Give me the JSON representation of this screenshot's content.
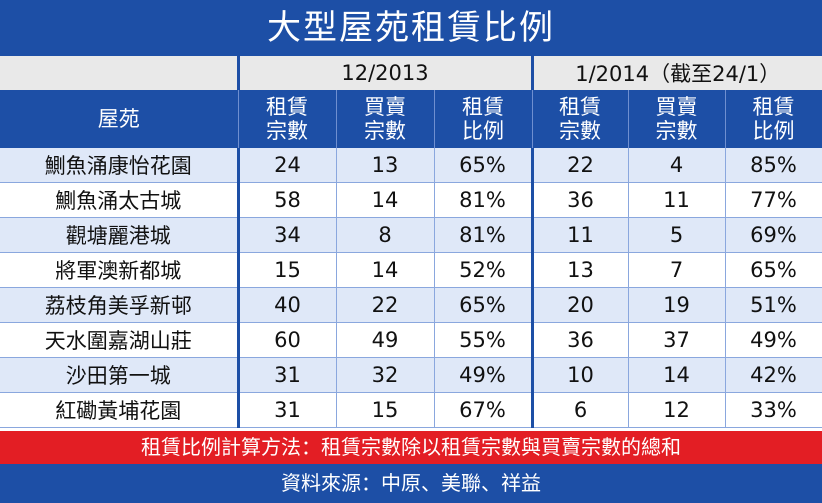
{
  "title": "大型屋苑租賃比例",
  "periods": [
    "12/2013",
    "1/2014（截至24/1）"
  ],
  "headers": {
    "estate": "屋苑",
    "rent_count": [
      "租賃",
      "宗數"
    ],
    "sale_count": [
      "買賣",
      "宗數"
    ],
    "rent_ratio": [
      "租賃",
      "比例"
    ]
  },
  "rows": [
    {
      "name": "鰂魚涌康怡花園",
      "p1": [
        "24",
        "13",
        "65%"
      ],
      "p2": [
        "22",
        "4",
        "85%"
      ]
    },
    {
      "name": "鰂魚涌太古城",
      "p1": [
        "58",
        "14",
        "81%"
      ],
      "p2": [
        "36",
        "11",
        "77%"
      ]
    },
    {
      "name": "觀塘麗港城",
      "p1": [
        "34",
        "8",
        "81%"
      ],
      "p2": [
        "11",
        "5",
        "69%"
      ]
    },
    {
      "name": "將軍澳新都城",
      "p1": [
        "15",
        "14",
        "52%"
      ],
      "p2": [
        "13",
        "7",
        "65%"
      ]
    },
    {
      "name": "荔枝角美孚新邨",
      "p1": [
        "40",
        "22",
        "65%"
      ],
      "p2": [
        "20",
        "19",
        "51%"
      ]
    },
    {
      "name": "天水圍嘉湖山莊",
      "p1": [
        "60",
        "49",
        "55%"
      ],
      "p2": [
        "36",
        "37",
        "49%"
      ]
    },
    {
      "name": "沙田第一城",
      "p1": [
        "31",
        "32",
        "49%"
      ],
      "p2": [
        "10",
        "14",
        "42%"
      ]
    },
    {
      "name": "紅磡黃埔花園",
      "p1": [
        "31",
        "15",
        "67%"
      ],
      "p2": [
        "6",
        "12",
        "33%"
      ]
    }
  ],
  "note": "租賃比例計算方法：租賃宗數除以租賃宗數與買賣宗數的總和",
  "source": "資料來源：中原、美聯、祥益",
  "colors": {
    "header_blue": "#1d4fa6",
    "stripe_blue": "#dfe8f8",
    "note_red": "#e31e24"
  }
}
